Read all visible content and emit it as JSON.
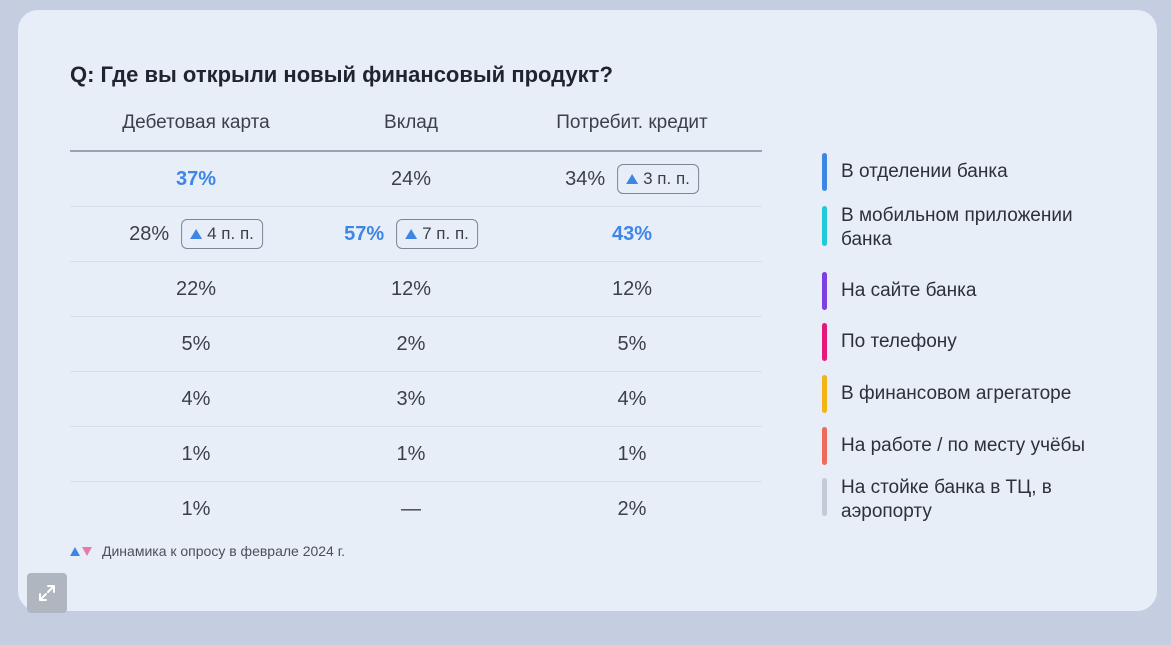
{
  "chart_data": {
    "type": "table",
    "title": "Q: Где вы открыли новый финансовый продукт?",
    "columns": [
      "Дебетовая карта",
      "Вклад",
      "Потребит. кредит"
    ],
    "rows": [
      {
        "label": "В отделении банка",
        "color": "#3d86e6",
        "cells": [
          {
            "value": "37%",
            "highlight": true,
            "badge": null
          },
          {
            "value": "24%",
            "highlight": false,
            "badge": null
          },
          {
            "value": "34%",
            "highlight": false,
            "badge": "3 п. п."
          }
        ]
      },
      {
        "label": "В мобильном приложении банка",
        "color": "#22c9d6",
        "cells": [
          {
            "value": "28%",
            "highlight": false,
            "badge": "4 п. п."
          },
          {
            "value": "57%",
            "highlight": true,
            "badge": "7 п. п."
          },
          {
            "value": "43%",
            "highlight": true,
            "badge": null
          }
        ]
      },
      {
        "label": "На сайте банка",
        "color": "#7b3fe4",
        "cells": [
          {
            "value": "22%",
            "highlight": false,
            "badge": null
          },
          {
            "value": "12%",
            "highlight": false,
            "badge": null
          },
          {
            "value": "12%",
            "highlight": false,
            "badge": null
          }
        ]
      },
      {
        "label": "По телефону",
        "color": "#e6197a",
        "cells": [
          {
            "value": "5%",
            "highlight": false,
            "badge": null
          },
          {
            "value": "2%",
            "highlight": false,
            "badge": null
          },
          {
            "value": "5%",
            "highlight": false,
            "badge": null
          }
        ]
      },
      {
        "label": "В финансовом агрегаторе",
        "color": "#f5b416",
        "cells": [
          {
            "value": "4%",
            "highlight": false,
            "badge": null
          },
          {
            "value": "3%",
            "highlight": false,
            "badge": null
          },
          {
            "value": "4%",
            "highlight": false,
            "badge": null
          }
        ]
      },
      {
        "label": "На работе / по месту учёбы",
        "color": "#f06a5c",
        "cells": [
          {
            "value": "1%",
            "highlight": false,
            "badge": null
          },
          {
            "value": "1%",
            "highlight": false,
            "badge": null
          },
          {
            "value": "1%",
            "highlight": false,
            "badge": null
          }
        ]
      },
      {
        "label": "На стойке банка в ТЦ, в аэропорту",
        "color": "#c4cad6",
        "cells": [
          {
            "value": "1%",
            "highlight": false,
            "badge": null
          },
          {
            "value": "—",
            "highlight": false,
            "badge": null
          },
          {
            "value": "2%",
            "highlight": false,
            "badge": null
          }
        ]
      }
    ]
  },
  "footnote": "Динамика к опросу в феврале 2024 г.",
  "colors": {
    "highlight": "#3d86e6",
    "up_arrow": "#3d86e6",
    "down_arrow": "#e87aa8"
  },
  "icons": {
    "expand": "expand-icon",
    "trend_up": "triangle-up-icon",
    "trend_down": "triangle-down-icon"
  }
}
